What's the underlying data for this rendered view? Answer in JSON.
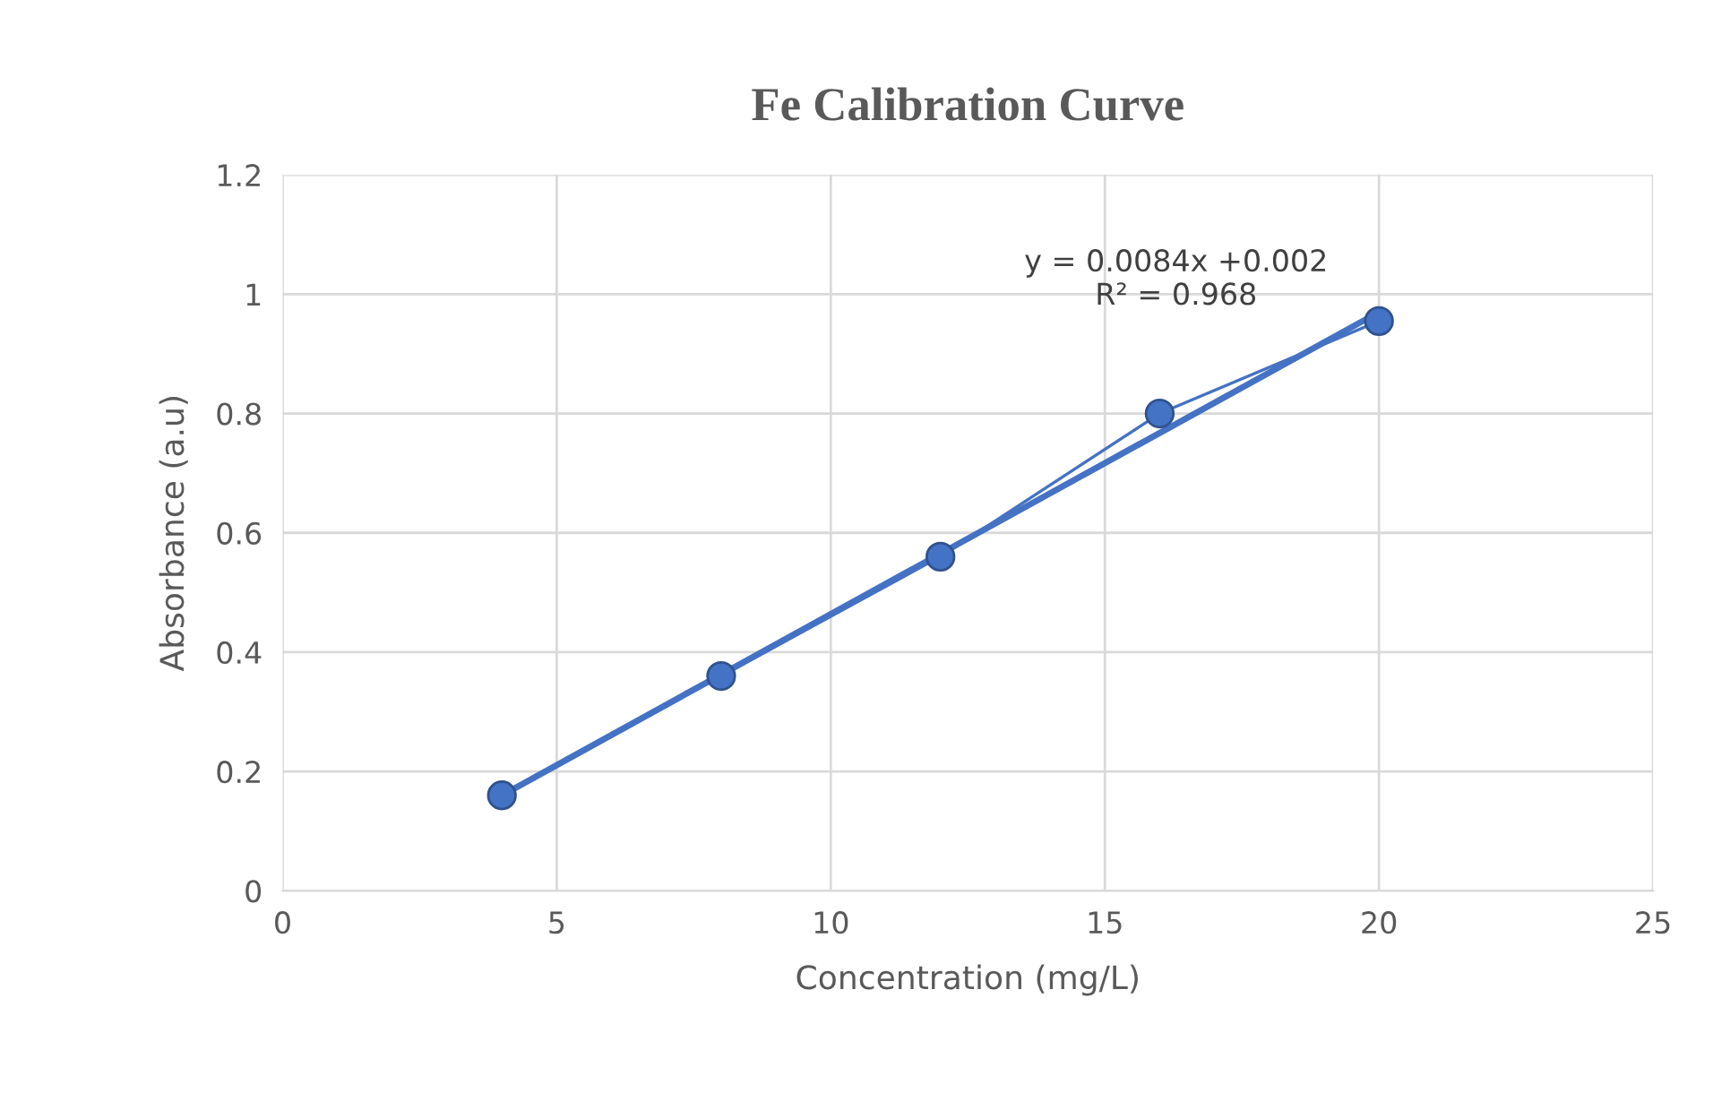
{
  "chart_data": {
    "type": "line",
    "title": "Fe Calibration Curve",
    "xlabel": "Concentration (mg/L)",
    "ylabel": "Absorbance (a.u)",
    "series": [
      {
        "color": "#4472c4",
        "marker": "circle",
        "x": [
          4,
          8,
          12,
          16,
          20
        ],
        "values": [
          0.16,
          0.36,
          0.56,
          0.8,
          0.955
        ]
      },
      {
        "color": "#4472c4",
        "marker": "none",
        "x": [
          4,
          20
        ],
        "values": [
          0.16,
          0.97
        ]
      }
    ],
    "annotations": [
      "y = 0.0084x +0.002\nR² = 0.968"
    ],
    "xlim": [
      0,
      25
    ],
    "xticks": [
      0,
      5,
      10,
      15,
      20,
      25
    ],
    "ylim": [
      0,
      1.2
    ],
    "yticks": [
      0,
      0.2,
      0.4,
      0.6,
      0.8,
      1,
      1.2
    ],
    "grid": true
  }
}
